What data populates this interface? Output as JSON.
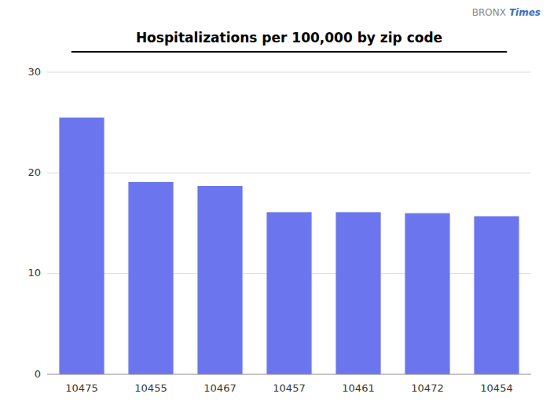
{
  "chart_data": {
    "type": "bar",
    "title": "Hospitalizations per 100,000 by zip code",
    "categories": [
      "10475",
      "10455",
      "10467",
      "10457",
      "10461",
      "10472",
      "10454"
    ],
    "values": [
      25.5,
      19.1,
      18.7,
      16.1,
      16.1,
      16.0,
      15.7
    ],
    "color": "#6b76ee",
    "ylim": [
      0,
      30
    ],
    "yticks": [
      0,
      10,
      20,
      30
    ],
    "grid": true,
    "annotations": [
      {
        "text": "BRONX",
        "color": "#888888"
      },
      {
        "text": "Times",
        "color": "#3a6fc4"
      }
    ]
  }
}
